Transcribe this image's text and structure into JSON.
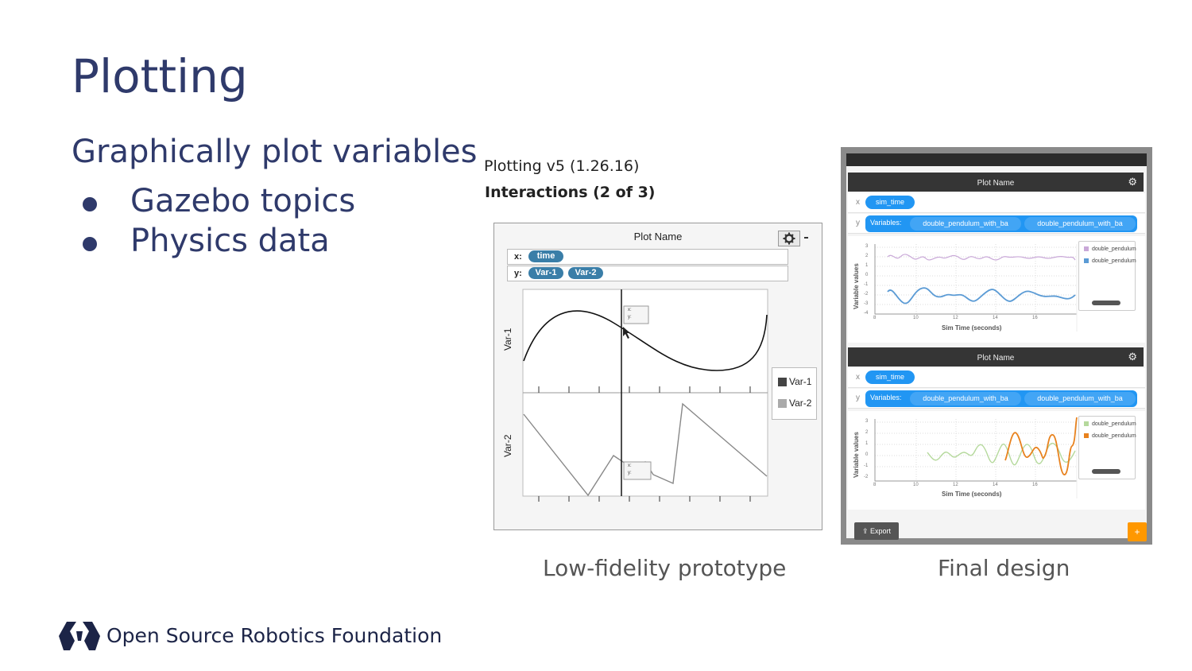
{
  "slide": {
    "title": "Plotting",
    "subtitle": "Graphically plot variables",
    "bullets": [
      "Gazebo topics",
      "Physics data"
    ]
  },
  "prototype": {
    "heading_line1": "Plotting v5 (1.26.16)",
    "heading_line2": "Interactions (2 of 3)",
    "plot_name": "Plot Name",
    "x_label": "x:",
    "y_label": "y:",
    "x_pill": "time",
    "y_pills": [
      "Var-1",
      "Var-2"
    ],
    "axis_labels": [
      "Var-1",
      "Var-2"
    ],
    "hover_labels": [
      "x:",
      "y:"
    ],
    "legend": [
      "Var-1",
      "Var-2"
    ],
    "legend_colors": [
      "#444444",
      "#aaaaaa"
    ],
    "caption": "Low-fidelity prototype"
  },
  "final_design": {
    "plots": [
      {
        "plot_name": "Plot Name",
        "x_label": "x",
        "x_pill": "sim_time",
        "y_label": "y",
        "variables_pill": "Variables:",
        "y_pills": [
          "double_pendulum_with_ba",
          "double_pendulum_with_ba"
        ],
        "y_axis_label": "Variable values",
        "x_axis_label": "Sim Time (seconds)",
        "y_ticks": [
          "3",
          "2",
          "1",
          "0",
          "-1",
          "-2",
          "-3",
          "-4"
        ],
        "x_ticks": [
          "8",
          "10",
          "12",
          "14",
          "16"
        ],
        "legend": [
          "double_pendulum",
          "double_pendulum"
        ],
        "legend_colors": [
          "#c9a8d8",
          "#5b9bd5"
        ]
      },
      {
        "plot_name": "Plot Name",
        "x_label": "x",
        "x_pill": "sim_time",
        "y_label": "y",
        "variables_pill": "Variables:",
        "y_pills": [
          "double_pendulum_with_ba",
          "double_pendulum_with_ba"
        ],
        "y_axis_label": "Variable values",
        "x_axis_label": "Sim Time (seconds)",
        "y_ticks": [
          "3",
          "2",
          "1",
          "0",
          "-1",
          "-2"
        ],
        "x_ticks": [
          "8",
          "10",
          "12",
          "14",
          "16"
        ],
        "legend": [
          "double_pendulum",
          "double_pendulum"
        ],
        "legend_colors": [
          "#b5d99c",
          "#e8821e"
        ]
      }
    ],
    "export_label": "Export",
    "add_label": "+",
    "caption": "Final design"
  },
  "footer": {
    "org_name": "Open Source Robotics Foundation"
  },
  "colors": {
    "title": "#2f3a6b",
    "logo": "#1c2447",
    "accent_blue": "#2196f3",
    "accent_orange": "#ff9800"
  }
}
